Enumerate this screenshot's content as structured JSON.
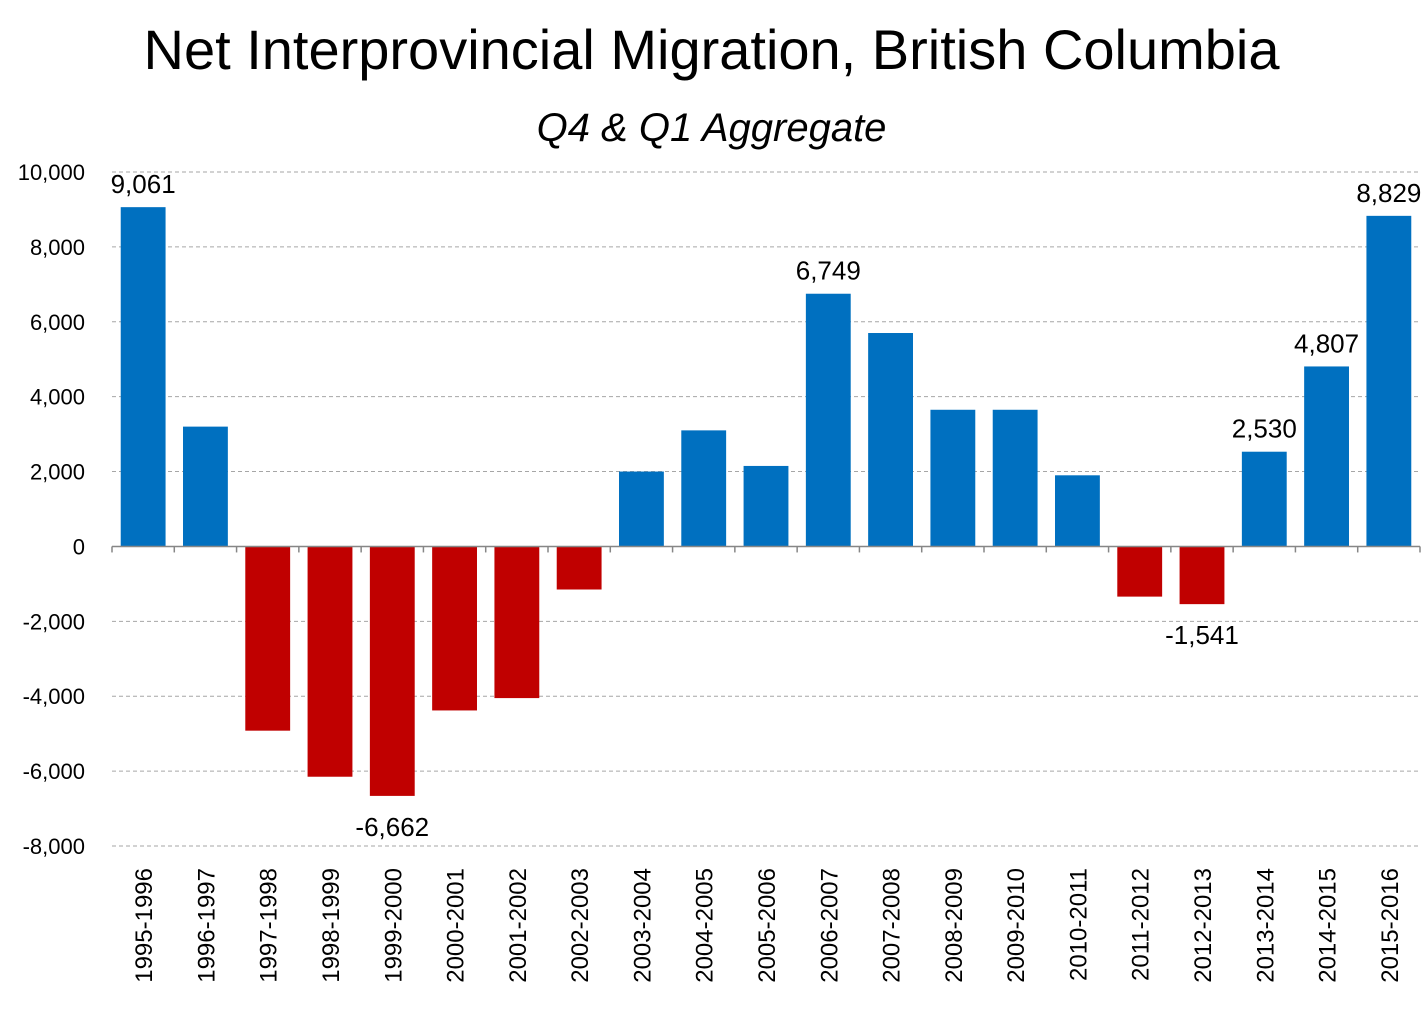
{
  "chart_data": {
    "type": "bar",
    "title": "Net Interprovincial Migration, British Columbia",
    "subtitle": "Q4 & Q1 Aggregate",
    "categories": [
      "1995-1996",
      "1996-1997",
      "1997-1998",
      "1998-1999",
      "1999-2000",
      "2000-2001",
      "2001-2002",
      "2002-2003",
      "2003-2004",
      "2004-2005",
      "2005-2006",
      "2006-2007",
      "2007-2008",
      "2008-2009",
      "2009-2010",
      "2010-2011",
      "2011-2012",
      "2012-2013",
      "2013-2014",
      "2014-2015",
      "2015-2016"
    ],
    "values": [
      9061,
      3200,
      -4920,
      -6150,
      -6662,
      -4380,
      -4050,
      -1150,
      2000,
      3100,
      2150,
      6749,
      5700,
      3650,
      3650,
      1900,
      -1340,
      -1541,
      2530,
      4807,
      8829
    ],
    "data_labels": [
      {
        "index": 0,
        "text": "9,061"
      },
      {
        "index": 4,
        "text": "-6,662"
      },
      {
        "index": 11,
        "text": "6,749"
      },
      {
        "index": 17,
        "text": "-1,541"
      },
      {
        "index": 18,
        "text": "2,530"
      },
      {
        "index": 19,
        "text": "4,807"
      },
      {
        "index": 20,
        "text": "8,829"
      }
    ],
    "ylim": [
      -8000,
      10000
    ],
    "yticks": [
      10000,
      8000,
      6000,
      4000,
      2000,
      0,
      -2000,
      -4000,
      -6000,
      -8000
    ],
    "ytick_labels": [
      "10,000",
      "8,000",
      "6,000",
      "4,000",
      "2,000",
      "0",
      "-2,000",
      "-4,000",
      "-6,000",
      "-8,000"
    ],
    "xlabel": "",
    "ylabel": "",
    "grid": true,
    "grid_style": "dashed",
    "legend": "none",
    "positive_color": "#0070C0",
    "negative_color": "#C00000",
    "grid_color": "#a6a6a6",
    "axis_color": "#868686"
  }
}
